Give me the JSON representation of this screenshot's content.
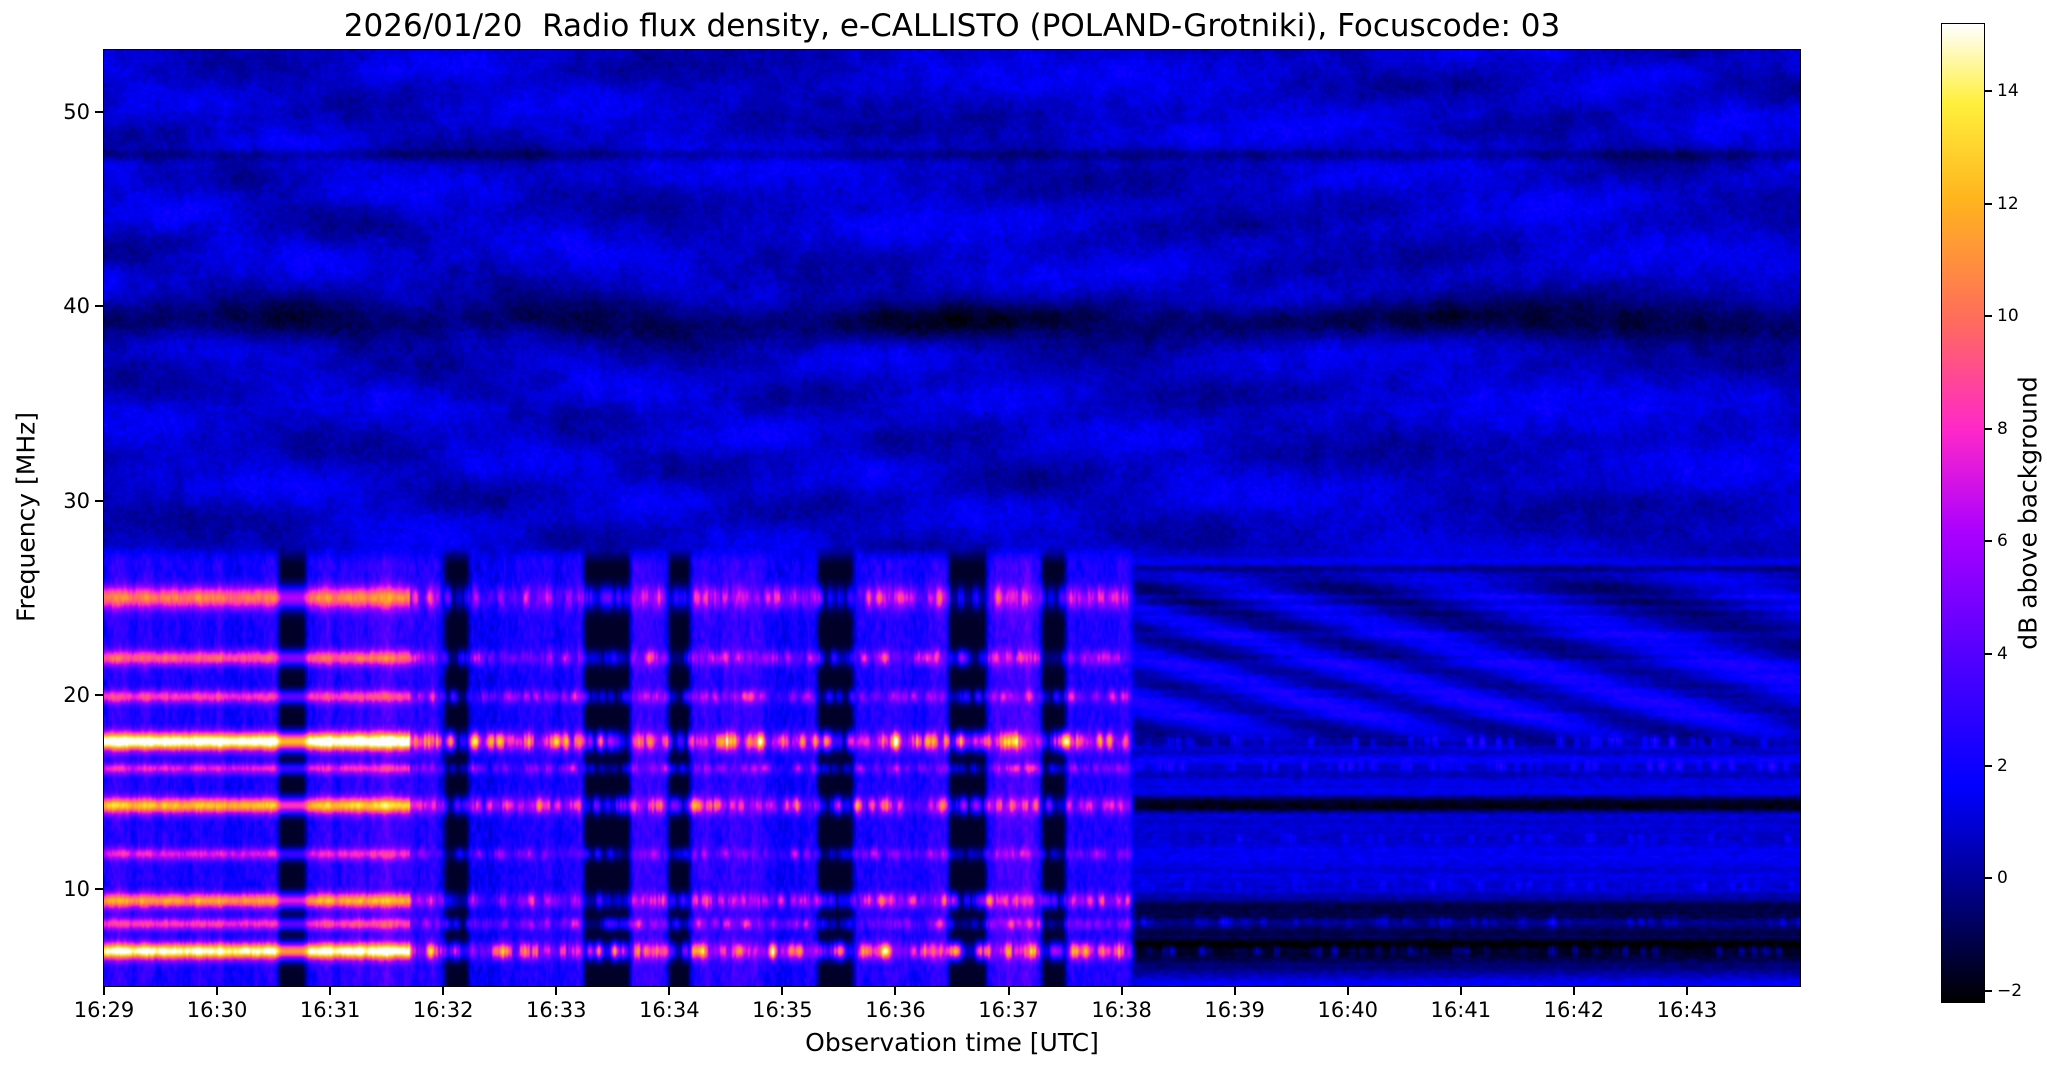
{
  "window": {
    "background": "#ffffff"
  },
  "chart_data": {
    "type": "heatmap",
    "title": "2026/01/20  Radio flux density, e-CALLISTO (POLAND-Grotniki), Focuscode: 03",
    "date": "2026/01/20",
    "instrument": "e-CALLISTO",
    "station": "POLAND-Grotniki",
    "focuscode": "03",
    "xlabel": "Observation time [UTC]",
    "ylabel": "Frequency [MHz]",
    "x_tick_labels": [
      "16:29",
      "16:30",
      "16:31",
      "16:32",
      "16:33",
      "16:34",
      "16:35",
      "16:36",
      "16:37",
      "16:38",
      "16:39",
      "16:40",
      "16:41",
      "16:42",
      "16:43"
    ],
    "x_range_minutes": [
      0,
      15
    ],
    "y_tick_values": [
      10,
      20,
      30,
      40,
      50
    ],
    "freq_range_mhz": [
      5.0,
      53.2
    ],
    "grid": false,
    "colorbar": {
      "label": "dB above background",
      "ticks": [
        -2,
        0,
        2,
        4,
        6,
        8,
        10,
        12,
        14
      ],
      "vmin": -2.2,
      "vmax": 15.2,
      "colormap_stops": [
        [
          0.0,
          "#000000"
        ],
        [
          0.1,
          "#000078"
        ],
        [
          0.22,
          "#0000ff"
        ],
        [
          0.35,
          "#5000ff"
        ],
        [
          0.48,
          "#aa00ff"
        ],
        [
          0.585,
          "#ff28c8"
        ],
        [
          0.7,
          "#ff6e5a"
        ],
        [
          0.82,
          "#ffb41e"
        ],
        [
          0.92,
          "#fff03c"
        ],
        [
          1.0,
          "#ffffff"
        ]
      ]
    },
    "features": {
      "description": "Dynamic spectrum: strong bursty emission with vertical striping and bright RFI lines below ~27 MHz until 16:38, quieter horizontally-streaked band with dark lines afterwards; faint diagonal interference fringes across upper band; dark lane near 39-40 MHz.",
      "burst_activity_end_minute": 9.1,
      "low_band_top_mhz": 27.2,
      "rfi_lines_active": [
        {
          "freq_mhz": 6.8,
          "peak_db": 13,
          "width_mhz": 0.3
        },
        {
          "freq_mhz": 8.2,
          "peak_db": 6,
          "width_mhz": 0.22
        },
        {
          "freq_mhz": 9.4,
          "peak_db": 9,
          "width_mhz": 0.28
        },
        {
          "freq_mhz": 11.8,
          "peak_db": 5,
          "width_mhz": 0.22
        },
        {
          "freq_mhz": 14.3,
          "peak_db": 10,
          "width_mhz": 0.3
        },
        {
          "freq_mhz": 16.2,
          "peak_db": 5,
          "width_mhz": 0.2
        },
        {
          "freq_mhz": 17.6,
          "peak_db": 14,
          "width_mhz": 0.33
        },
        {
          "freq_mhz": 19.9,
          "peak_db": 6,
          "width_mhz": 0.24
        },
        {
          "freq_mhz": 21.9,
          "peak_db": 7,
          "width_mhz": 0.28
        },
        {
          "freq_mhz": 25.0,
          "peak_db": 8,
          "width_mhz": 0.4
        }
      ],
      "dark_lines_after": [
        {
          "freq_mhz": 14.35,
          "depth_db": 3.5,
          "width_mhz": 0.25
        },
        {
          "freq_mhz": 9.0,
          "depth_db": 2.5,
          "width_mhz": 0.4
        },
        {
          "freq_mhz": 7.0,
          "depth_db": 3.0,
          "width_mhz": 0.7
        },
        {
          "freq_mhz": 17.6,
          "depth_db": 1.2,
          "width_mhz": 0.3
        }
      ],
      "bright_dashes_after": [
        {
          "freq_mhz": 17.6,
          "peak_db": 3.2,
          "width_mhz": 0.2
        },
        {
          "freq_mhz": 16.3,
          "peak_db": 2.8,
          "width_mhz": 0.18
        },
        {
          "freq_mhz": 12.6,
          "peak_db": 2.0,
          "width_mhz": 0.16
        },
        {
          "freq_mhz": 10.2,
          "peak_db": 1.8,
          "width_mhz": 0.16
        },
        {
          "freq_mhz": 8.3,
          "peak_db": 2.8,
          "width_mhz": 0.2
        },
        {
          "freq_mhz": 6.8,
          "peak_db": 3.0,
          "width_mhz": 0.2
        }
      ],
      "dark_band_mhz": [
        38.3,
        40.2
      ],
      "speckle_line_mhz": 47.8,
      "time_gaps_minutes": [
        [
          1.55,
          1.78
        ],
        [
          3.02,
          3.22
        ],
        [
          4.25,
          4.65
        ],
        [
          5.0,
          5.18
        ],
        [
          6.32,
          6.62
        ],
        [
          7.48,
          7.8
        ],
        [
          8.3,
          8.5
        ]
      ]
    }
  }
}
